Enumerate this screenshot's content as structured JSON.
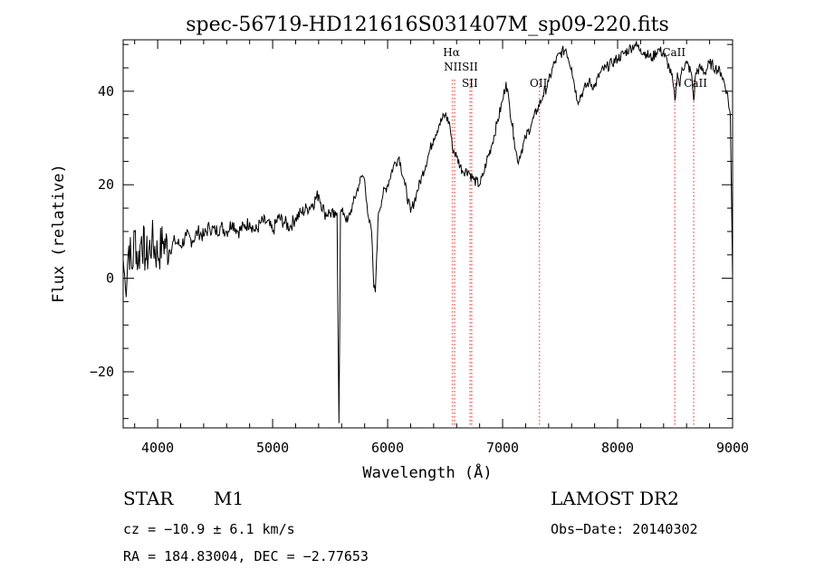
{
  "chart_data": {
    "type": "line",
    "title": "spec-56719-HD121616S031407M_sp09-220.fits",
    "xlabel": "Wavelength (Å)",
    "ylabel": "Flux (relative)",
    "xlim": [
      3700,
      9000
    ],
    "ylim": [
      -32,
      51
    ],
    "xticks": [
      4000,
      5000,
      6000,
      7000,
      8000,
      9000
    ],
    "yticks": [
      -20,
      0,
      20,
      40
    ],
    "grid": false,
    "line_color": "#000000",
    "marker_color": "#ff6666",
    "series_points": [
      [
        3700,
        4
      ],
      [
        3720,
        -2
      ],
      [
        3750,
        7
      ],
      [
        3780,
        2
      ],
      [
        3800,
        10
      ],
      [
        3830,
        3
      ],
      [
        3860,
        9
      ],
      [
        3900,
        4
      ],
      [
        3950,
        8
      ],
      [
        4000,
        5
      ],
      [
        4050,
        8
      ],
      [
        4100,
        6
      ],
      [
        4150,
        8
      ],
      [
        4200,
        7
      ],
      [
        4250,
        9
      ],
      [
        4300,
        8
      ],
      [
        4350,
        10
      ],
      [
        4400,
        9
      ],
      [
        4450,
        11
      ],
      [
        4500,
        10
      ],
      [
        4550,
        11
      ],
      [
        4600,
        10
      ],
      [
        4650,
        12
      ],
      [
        4700,
        10
      ],
      [
        4750,
        11
      ],
      [
        4800,
        12
      ],
      [
        4850,
        10
      ],
      [
        4900,
        12
      ],
      [
        4950,
        12
      ],
      [
        5000,
        10
      ],
      [
        5050,
        13
      ],
      [
        5100,
        12
      ],
      [
        5150,
        11
      ],
      [
        5200,
        13
      ],
      [
        5250,
        14
      ],
      [
        5300,
        15
      ],
      [
        5350,
        16
      ],
      [
        5400,
        18
      ],
      [
        5450,
        14
      ],
      [
        5500,
        14
      ],
      [
        5540,
        13
      ],
      [
        5560,
        14
      ],
      [
        5577,
        -31
      ],
      [
        5590,
        14
      ],
      [
        5620,
        14
      ],
      [
        5650,
        12
      ],
      [
        5700,
        16
      ],
      [
        5750,
        20
      ],
      [
        5780,
        22
      ],
      [
        5800,
        21
      ],
      [
        5820,
        16
      ],
      [
        5840,
        12
      ],
      [
        5860,
        10
      ],
      [
        5880,
        -2
      ],
      [
        5893,
        -3
      ],
      [
        5905,
        5
      ],
      [
        5920,
        14
      ],
      [
        5960,
        18
      ],
      [
        6000,
        20
      ],
      [
        6050,
        24
      ],
      [
        6100,
        26
      ],
      [
        6150,
        20
      ],
      [
        6200,
        14
      ],
      [
        6250,
        18
      ],
      [
        6300,
        22
      ],
      [
        6350,
        26
      ],
      [
        6400,
        30
      ],
      [
        6450,
        33
      ],
      [
        6500,
        35
      ],
      [
        6540,
        33
      ],
      [
        6563,
        28
      ],
      [
        6600,
        26
      ],
      [
        6650,
        23
      ],
      [
        6700,
        23
      ],
      [
        6750,
        21
      ],
      [
        6800,
        20
      ],
      [
        6830,
        22
      ],
      [
        6860,
        25
      ],
      [
        6900,
        28
      ],
      [
        6950,
        33
      ],
      [
        7000,
        38
      ],
      [
        7030,
        42
      ],
      [
        7060,
        37
      ],
      [
        7100,
        30
      ],
      [
        7130,
        25
      ],
      [
        7160,
        27
      ],
      [
        7200,
        30
      ],
      [
        7250,
        33
      ],
      [
        7300,
        36
      ],
      [
        7350,
        39
      ],
      [
        7400,
        42
      ],
      [
        7450,
        46
      ],
      [
        7500,
        48
      ],
      [
        7550,
        49
      ],
      [
        7600,
        45
      ],
      [
        7650,
        38
      ],
      [
        7700,
        40
      ],
      [
        7750,
        42
      ],
      [
        7800,
        41
      ],
      [
        7850,
        44
      ],
      [
        7900,
        45
      ],
      [
        7950,
        46
      ],
      [
        8000,
        47
      ],
      [
        8050,
        48
      ],
      [
        8100,
        49
      ],
      [
        8150,
        50
      ],
      [
        8200,
        49
      ],
      [
        8250,
        48
      ],
      [
        8300,
        47
      ],
      [
        8350,
        49
      ],
      [
        8400,
        48
      ],
      [
        8450,
        45
      ],
      [
        8480,
        42
      ],
      [
        8498,
        38
      ],
      [
        8520,
        44
      ],
      [
        8542,
        41
      ],
      [
        8560,
        45
      ],
      [
        8600,
        46
      ],
      [
        8640,
        44
      ],
      [
        8662,
        38
      ],
      [
        8680,
        44
      ],
      [
        8720,
        45
      ],
      [
        8760,
        44
      ],
      [
        8800,
        46
      ],
      [
        8850,
        45
      ],
      [
        8900,
        44
      ],
      [
        8950,
        40
      ],
      [
        8980,
        35
      ],
      [
        9000,
        0
      ]
    ],
    "line_markers": [
      {
        "name": "Hα",
        "label_rows": [
          "Hα"
        ],
        "x": 6563
      },
      {
        "name": "NII",
        "label_rows": [
          "NII"
        ],
        "x": 6583
      },
      {
        "name": "SII",
        "label_rows": [
          "SII"
        ],
        "x": 6716
      },
      {
        "name": "SII",
        "label_rows": [
          "SII"
        ],
        "x": 6731
      },
      {
        "name": "OII",
        "label_rows": [
          "OII"
        ],
        "x": 7320
      },
      {
        "name": "CaII",
        "label_rows": [
          "CaII"
        ],
        "x": 8498
      },
      {
        "name": "CaII",
        "label_rows": [
          "CaII"
        ],
        "x": 8662
      }
    ]
  },
  "labels": {
    "class": "STAR",
    "subclass": "M1",
    "survey": "LAMOST DR2",
    "cz": "cz = −10.9 ± 6.1 km/s",
    "obs_date": "Obs−Date: 20140302",
    "radec": "RA = 184.83004, DEC =  −2.77653"
  }
}
